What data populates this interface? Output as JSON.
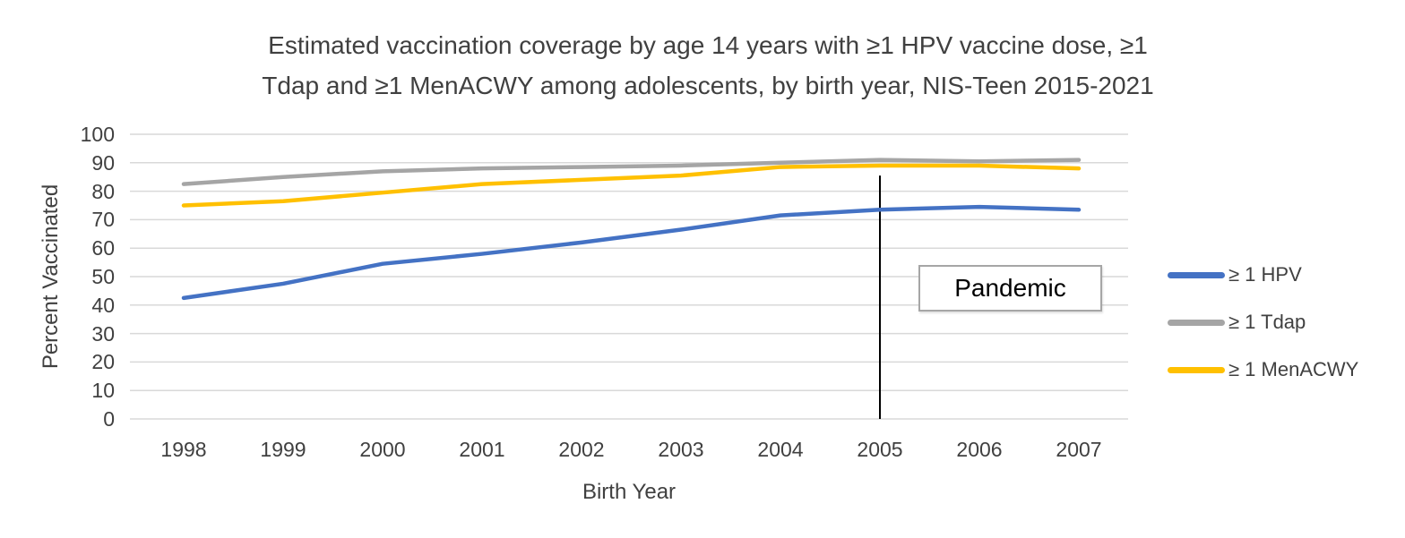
{
  "chart_title": {
    "line1": "Estimated vaccination coverage by age 14 years with ≥1 HPV vaccine dose, ≥1",
    "line2": "Tdap and ≥1 MenACWY among adolescents, by birth year, NIS-Teen 2015-2021"
  },
  "chart_data": {
    "type": "line",
    "title": "Estimated vaccination coverage by age 14 years with ≥1 HPV vaccine dose, ≥1 Tdap and ≥1 MenACWY among adolescents, by birth year, NIS-Teen 2015-2021",
    "categories": [
      "1998",
      "1999",
      "2000",
      "2001",
      "2002",
      "2003",
      "2004",
      "2005",
      "2006",
      "2007"
    ],
    "series": [
      {
        "name": "≥ 1 HPV",
        "color": "#4472C4",
        "values": [
          42.5,
          47.5,
          54.5,
          58,
          62,
          66.5,
          71.5,
          73.5,
          74.5,
          73.5
        ]
      },
      {
        "name": "≥ 1 Tdap",
        "color": "#A5A5A5",
        "values": [
          82.5,
          85,
          87,
          88,
          88.5,
          89,
          90,
          91,
          90.5,
          91
        ]
      },
      {
        "name": "≥ 1 MenACWY",
        "color": "#FFC000",
        "values": [
          75,
          76.5,
          79.5,
          82.5,
          84,
          85.5,
          88.5,
          89,
          89,
          88
        ]
      }
    ],
    "xlabel": "Birth Year",
    "ylabel": "Percent Vaccinated",
    "ylim": [
      0,
      100
    ],
    "yticks": [
      0,
      10,
      20,
      30,
      40,
      50,
      60,
      70,
      80,
      90,
      100
    ],
    "grid": "horizontal",
    "legend_position": "right",
    "annotation": {
      "vline_at_category": "2005",
      "vline_top_value": 85.5,
      "label": "Pandemic"
    }
  },
  "colors": {
    "background": "#FFFFFF",
    "text": "#404040",
    "gridline": "#D9D9D9",
    "annotation_line": "#000000",
    "annotation_box_border": "#A6A6A6"
  }
}
